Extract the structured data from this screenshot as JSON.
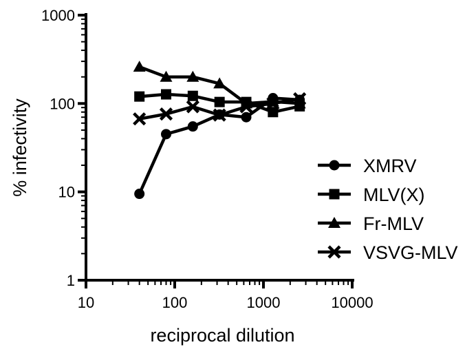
{
  "chart_data": {
    "type": "line",
    "xlabel": "reciprocal dilution",
    "ylabel": "% infectivity",
    "xscale": "log",
    "yscale": "log",
    "xlim": [
      10,
      10000
    ],
    "ylim": [
      1,
      1000
    ],
    "xticks": [
      10,
      100,
      1000,
      10000
    ],
    "xtick_labels": [
      "10",
      "100",
      "1000",
      "10000"
    ],
    "yticks": [
      1,
      10,
      100,
      1000
    ],
    "ytick_labels": [
      "1",
      "10",
      "100",
      "1000"
    ],
    "grid": false,
    "legend_position": "right",
    "x": [
      40,
      80,
      160,
      320,
      640,
      1280,
      2560
    ],
    "series": [
      {
        "name": "XMRV",
        "marker": "circle",
        "values": [
          9.5,
          45,
          55,
          75,
          70,
          115,
          110
        ]
      },
      {
        "name": "MLV(X)",
        "marker": "square",
        "values": [
          120,
          127,
          122,
          104,
          104,
          80,
          93
        ]
      },
      {
        "name": "Fr-MLV",
        "marker": "triangle",
        "values": [
          260,
          200,
          200,
          168,
          100,
          105,
          100
        ]
      },
      {
        "name": "VSVG-MLV",
        "marker": "x",
        "values": [
          67,
          76,
          92,
          74,
          92,
          100,
          113
        ]
      }
    ]
  }
}
